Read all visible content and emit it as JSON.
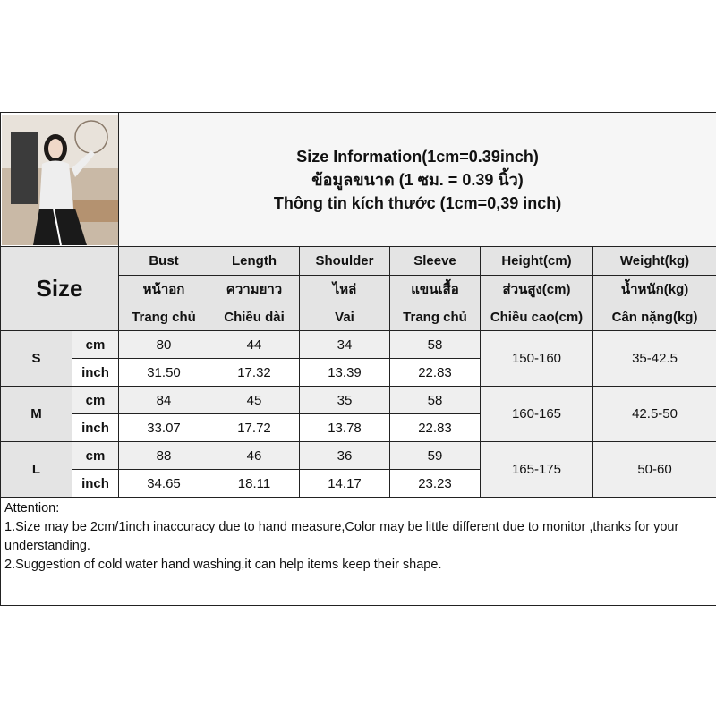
{
  "title": {
    "line1": "Size Information(1cm=0.39inch)",
    "line2": "ข้อมูลขนาด (1 ซม. = 0.39 นิ้ว)",
    "line3": "Thông tin kích thước (1cm=0,39 inch)"
  },
  "size_header": "Size",
  "columns": [
    {
      "en": "Bust",
      "th": "หน้าอก",
      "vi": "Trang chủ"
    },
    {
      "en": "Length",
      "th": "ความยาว",
      "vi": "Chiều dài"
    },
    {
      "en": "Shoulder",
      "th": "ไหล่",
      "vi": "Vai"
    },
    {
      "en": "Sleeve",
      "th": "แขนเสื้อ",
      "vi": "Trang chủ"
    },
    {
      "en": "Height(cm)",
      "th": "ส่วนสูง(cm)",
      "vi": "Chiều cao(cm)"
    },
    {
      "en": "Weight(kg)",
      "th": "น้ำหนัก(kg)",
      "vi": "Cân nặng(kg)"
    }
  ],
  "rows": [
    {
      "size": "S",
      "cm_label": "cm",
      "inch_label": "inch",
      "cm": [
        "80",
        "44",
        "34",
        "58"
      ],
      "inch": [
        "31.50",
        "17.32",
        "13.39",
        "22.83"
      ],
      "height": "150-160",
      "weight": "35-42.5"
    },
    {
      "size": "M",
      "cm_label": "cm",
      "inch_label": "inch",
      "cm": [
        "84",
        "45",
        "35",
        "58"
      ],
      "inch": [
        "33.07",
        "17.72",
        "13.78",
        "22.83"
      ],
      "height": "160-165",
      "weight": "42.5-50"
    },
    {
      "size": "L",
      "cm_label": "cm",
      "inch_label": "inch",
      "cm": [
        "88",
        "46",
        "36",
        "59"
      ],
      "inch": [
        "34.65",
        "18.11",
        "14.17",
        "23.23"
      ],
      "height": "165-175",
      "weight": "50-60"
    }
  ],
  "notes": {
    "heading": "Attention:",
    "items": [
      "1.Size may be 2cm/1inch inaccuracy due to hand measure,Color may be little different due to monitor ,thanks for your understanding.",
      "2.Suggestion of cold water hand washing,it can help items keep their shape."
    ]
  }
}
